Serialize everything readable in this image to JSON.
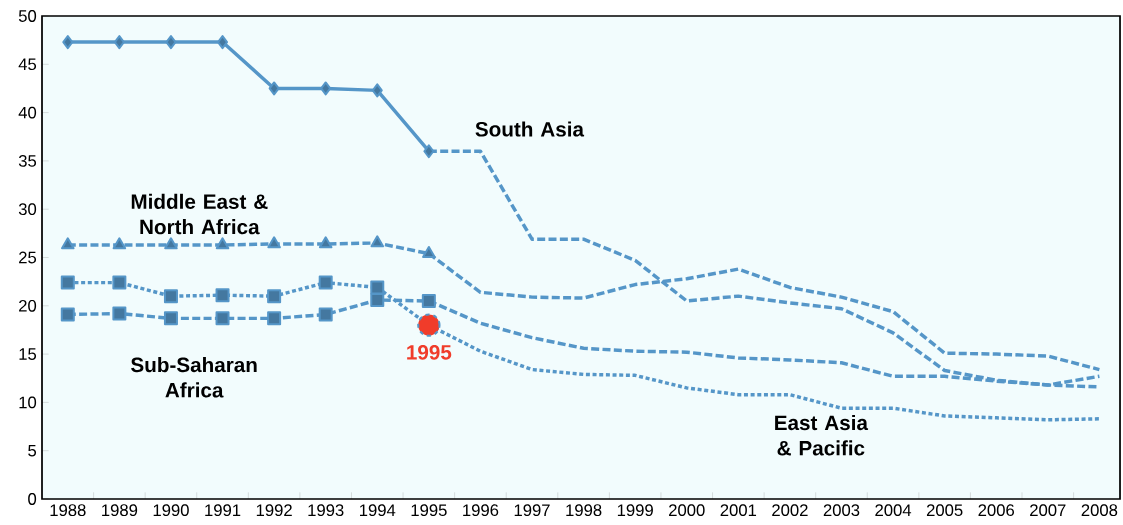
{
  "chart_data": {
    "type": "line",
    "x": [
      1988,
      1989,
      1990,
      1991,
      1992,
      1993,
      1994,
      1995,
      1996,
      1997,
      1998,
      1999,
      2000,
      2001,
      2002,
      2003,
      2004,
      2005,
      2006,
      2007,
      2008
    ],
    "xlim": [
      1987.5,
      2008.4
    ],
    "xticks": [
      1988,
      1989,
      1990,
      1991,
      1992,
      1993,
      1994,
      1995,
      1996,
      1997,
      1998,
      1999,
      2000,
      2001,
      2002,
      2003,
      2004,
      2005,
      2006,
      2007,
      2008
    ],
    "ylim": [
      0,
      50
    ],
    "yticks": [
      0,
      5,
      10,
      15,
      20,
      25,
      30,
      35,
      40,
      45,
      50
    ],
    "grid": false,
    "legend": false,
    "series": [
      {
        "type": "line",
        "color": "#5596c8",
        "marker": "diamond",
        "line_style": "solid",
        "values": [
          47.3,
          47.3,
          47.3,
          47.3,
          42.5,
          42.5,
          42.3,
          36.0,
          null,
          null,
          null,
          null,
          null,
          null,
          null,
          null,
          null,
          null,
          null,
          null,
          null
        ]
      },
      {
        "name": "South Asia",
        "type": "line",
        "color": "#5596c8",
        "marker": "none",
        "line_style": "dashed",
        "values": [
          null,
          null,
          null,
          null,
          null,
          null,
          null,
          36.0,
          36.0,
          26.9,
          26.9,
          24.7,
          20.5,
          21.0,
          20.3,
          19.7,
          17.2,
          13.3,
          12.3,
          11.8,
          11.6
        ]
      },
      {
        "name": "Middle East & North Africa",
        "type": "line",
        "color": "#5596c8",
        "marker": "triangle",
        "line_style": "dashed",
        "values": [
          26.3,
          26.3,
          26.3,
          26.3,
          26.4,
          26.4,
          26.5,
          25.4,
          null,
          null,
          null,
          null,
          null,
          null,
          null,
          null,
          null,
          null,
          null,
          null,
          null
        ]
      },
      {
        "type": "line",
        "color": "#5596c8",
        "marker": "none",
        "line_style": "dashed",
        "values": [
          null,
          null,
          null,
          null,
          null,
          null,
          null,
          25.4,
          21.4,
          20.9,
          20.8,
          22.2,
          22.8,
          23.8,
          21.9,
          20.9,
          19.4,
          15.1,
          15.0,
          14.8,
          13.4
        ]
      },
      {
        "name": "Sub-Saharan Africa",
        "type": "line",
        "color": "#5596c8",
        "marker": "square",
        "line_style": "dashed",
        "values": [
          19.1,
          19.2,
          18.7,
          18.7,
          18.7,
          19.1,
          20.6,
          20.5,
          null,
          null,
          null,
          null,
          null,
          null,
          null,
          null,
          null,
          null,
          null,
          null,
          null
        ]
      },
      {
        "type": "line",
        "color": "#5596c8",
        "marker": "none",
        "line_style": "dashed",
        "values": [
          null,
          null,
          null,
          null,
          null,
          null,
          null,
          20.5,
          18.2,
          16.7,
          15.6,
          15.3,
          15.2,
          14.6,
          14.4,
          14.1,
          12.7,
          12.7,
          12.2,
          11.8,
          12.7
        ]
      },
      {
        "type": "line",
        "color": "#5596c8",
        "marker": "square",
        "line_style": "dotted",
        "values": [
          22.4,
          22.4,
          21.0,
          21.1,
          21.0,
          22.4,
          21.9,
          18.0,
          null,
          null,
          null,
          null,
          null,
          null,
          null,
          null,
          null,
          null,
          null,
          null,
          null
        ]
      },
      {
        "name": "East Asia & Pacific",
        "type": "line",
        "color": "#5596c8",
        "marker": "none",
        "line_style": "dotted",
        "values": [
          null,
          null,
          null,
          null,
          null,
          null,
          null,
          18.0,
          15.3,
          13.4,
          12.9,
          12.8,
          11.5,
          10.8,
          10.8,
          9.4,
          9.4,
          8.6,
          8.4,
          8.2,
          8.3
        ]
      },
      {
        "type": "scatter",
        "color": "#f03c2a",
        "marker": "circle",
        "values": [
          null,
          null,
          null,
          null,
          null,
          null,
          null,
          18.0,
          null,
          null,
          null,
          null,
          null,
          null,
          null,
          null,
          null,
          null,
          null,
          null,
          null
        ]
      }
    ],
    "annotations": [
      {
        "text": "1995",
        "x": 1995,
        "y": 18.0
      }
    ]
  }
}
